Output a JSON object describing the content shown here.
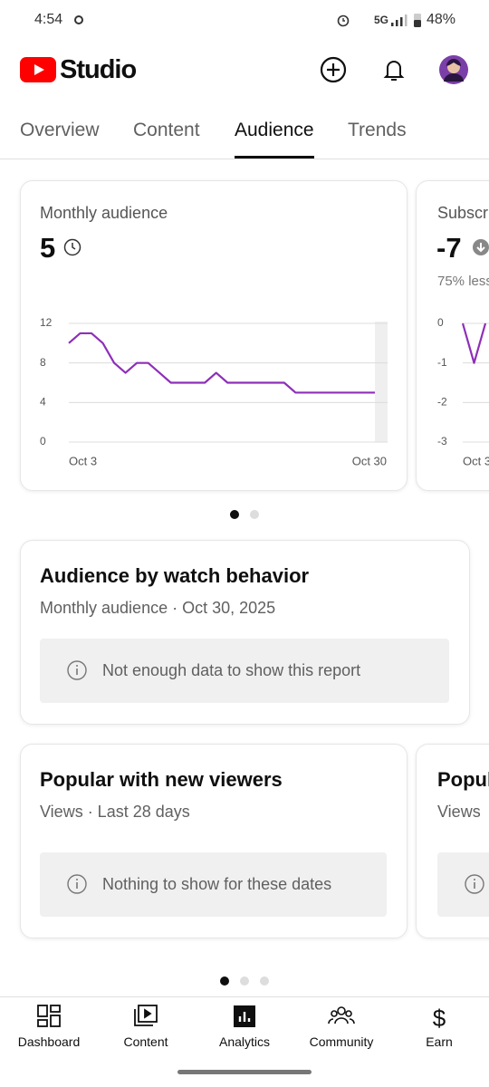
{
  "status_bar": {
    "time": "4:54",
    "network": "5G",
    "battery": "48%"
  },
  "header": {
    "brand": "Studio"
  },
  "tabs": [
    "Overview",
    "Content",
    "Audience",
    "Trends"
  ],
  "selected_tab": 2,
  "chart_data": [
    {
      "type": "line",
      "title": "Monthly audience",
      "headline": "5",
      "categories": [
        "Oct 3",
        null,
        null,
        null,
        null,
        null,
        null,
        null,
        null,
        null,
        null,
        null,
        null,
        null,
        null,
        null,
        null,
        null,
        null,
        null,
        null,
        null,
        null,
        null,
        null,
        null,
        null,
        "Oct 30"
      ],
      "series": [
        {
          "color": "#8e2fb8",
          "values": [
            10,
            11,
            11,
            10,
            8,
            7,
            8,
            8,
            7,
            6,
            6,
            6,
            6,
            7,
            6,
            6,
            6,
            6,
            6,
            6,
            5,
            5,
            5,
            5,
            5,
            5,
            5,
            5
          ]
        }
      ],
      "ylim": [
        0,
        12
      ],
      "yticks": [
        0,
        4,
        8,
        12
      ],
      "grid": true
    },
    {
      "type": "line",
      "title": "Subscribers",
      "headline": "-7",
      "note": "75% less",
      "categories": [
        "Oct 3",
        null,
        null
      ],
      "series": [
        {
          "color": "#8e2fb8",
          "values": [
            0,
            -1,
            0
          ]
        }
      ],
      "ylim": [
        -3,
        0
      ],
      "yticks": [
        -3,
        -2,
        -1,
        0
      ],
      "grid": true
    }
  ],
  "sections": [
    {
      "title": "Audience by watch behavior",
      "subtitle": "Monthly audience · Oct 30, 2025",
      "message": "Not enough data to show this report"
    },
    {
      "title": "Popular with new viewers",
      "subtitle": "Views · Last 28 days",
      "message": "Nothing to show for these dates"
    },
    {
      "title": "Popular",
      "subtitle": "Views"
    }
  ],
  "nav": [
    "Dashboard",
    "Content",
    "Analytics",
    "Community",
    "Earn"
  ],
  "selected_nav": 2
}
